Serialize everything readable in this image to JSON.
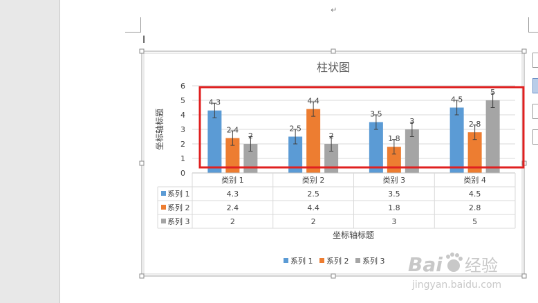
{
  "document": {
    "return_mark": "↵",
    "text_cursor": "I"
  },
  "chart_data": {
    "type": "bar",
    "title": "柱状图",
    "xlabel": "坐标轴标题",
    "ylabel": "坐标轴标题",
    "ylim": [
      0,
      6
    ],
    "yticks": [
      "0",
      "1",
      "2",
      "3",
      "4",
      "5",
      "6"
    ],
    "categories": [
      "类别 1",
      "类别 2",
      "类别 3",
      "类别 4"
    ],
    "series": [
      {
        "name": "系列 1",
        "values": [
          4.3,
          2.5,
          3.5,
          4.5
        ],
        "color": "#5b9bd5"
      },
      {
        "name": "系列 2",
        "values": [
          2.4,
          4.4,
          1.8,
          2.8
        ],
        "color": "#ed7d31"
      },
      {
        "name": "系列 3",
        "values": [
          2,
          2,
          3,
          5
        ],
        "color": "#a5a5a5"
      }
    ],
    "error_bars": true,
    "data_table": true,
    "legend_position": "bottom",
    "grid": true
  },
  "annotation": {
    "highlight_color": "#e02020"
  },
  "watermark": {
    "brand": "Bai",
    "brand_tail": "经验",
    "url": "jingyan.baidu.com"
  }
}
